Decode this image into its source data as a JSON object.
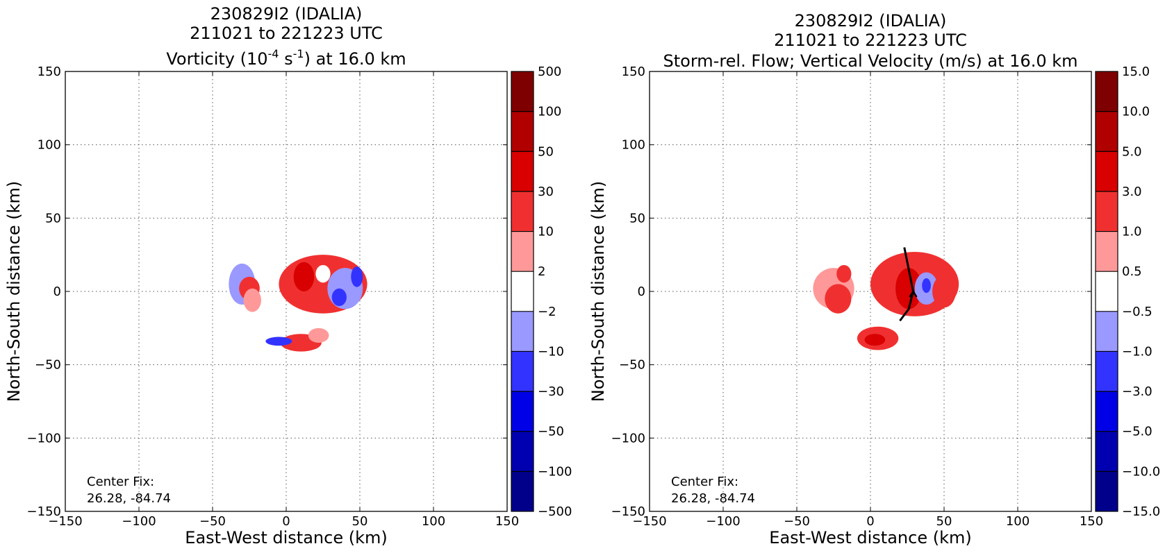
{
  "chart_data": [
    {
      "type": "heatmap",
      "panel": "left",
      "title_lines": [
        "230829I2 (IDALIA)",
        "211021 to 221223 UTC"
      ],
      "title_var_pre": "Vorticity (10",
      "title_var_exp1": "-4",
      "title_var_mid": " s",
      "title_var_exp2": "-1",
      "title_var_post": ") at 16.0 km",
      "xlabel": "East-West distance (km)",
      "ylabel": "North-South distance (km)",
      "xlim": [
        -150,
        150
      ],
      "ylim": [
        -150,
        150
      ],
      "xticks": [
        -150,
        -100,
        -50,
        0,
        50,
        100,
        150
      ],
      "yticks": [
        -150,
        -100,
        -50,
        0,
        50,
        100,
        150
      ],
      "xtick_labels": [
        "−150",
        "−100",
        "−50",
        "0",
        "50",
        "100",
        "150"
      ],
      "ytick_labels": [
        "−150",
        "−100",
        "−50",
        "0",
        "50",
        "100",
        "150"
      ],
      "grid": true,
      "colorbar_labels": [
        "500",
        "100",
        "50",
        "30",
        "10",
        "2",
        "−2",
        "−10",
        "−30",
        "−50",
        "−100",
        "−500"
      ],
      "colorbar_colors": [
        "#7f0000",
        "#b00000",
        "#d80000",
        "#f03030",
        "#ff9999",
        "#ffffff",
        "#9999ff",
        "#3333ff",
        "#0000e6",
        "#0000b0",
        "#00008b"
      ],
      "annotation_lines": [
        "Center Fix:",
        "26.28, -84.74"
      ],
      "blobs": [
        {
          "x": -30,
          "y": 5,
          "rx": 9,
          "ry": 14,
          "color": "#9999ff"
        },
        {
          "x": -25,
          "y": 2,
          "rx": 7,
          "ry": 8,
          "color": "#f03030"
        },
        {
          "x": -23,
          "y": -6,
          "rx": 6,
          "ry": 8,
          "color": "#ff9999"
        },
        {
          "x": 25,
          "y": 5,
          "rx": 30,
          "ry": 20,
          "color": "#f03030"
        },
        {
          "x": 40,
          "y": 2,
          "rx": 12,
          "ry": 14,
          "color": "#9999ff"
        },
        {
          "x": 36,
          "y": -4,
          "rx": 5,
          "ry": 6,
          "color": "#3333ff"
        },
        {
          "x": 48,
          "y": 10,
          "rx": 4,
          "ry": 7,
          "color": "#3333ff"
        },
        {
          "x": 25,
          "y": 12,
          "rx": 5,
          "ry": 6,
          "color": "#ffffff"
        },
        {
          "x": 12,
          "y": 10,
          "rx": 7,
          "ry": 10,
          "color": "#d80000"
        },
        {
          "x": 10,
          "y": -35,
          "rx": 14,
          "ry": 6,
          "color": "#f03030"
        },
        {
          "x": -5,
          "y": -34,
          "rx": 9,
          "ry": 3,
          "color": "#3333ff"
        },
        {
          "x": 22,
          "y": -30,
          "rx": 7,
          "ry": 5,
          "color": "#ff9999"
        }
      ]
    },
    {
      "type": "heatmap",
      "panel": "right",
      "title_lines": [
        "230829I2 (IDALIA)",
        "211021 to 221223 UTC",
        "Storm-rel. Flow; Vertical Velocity (m/s) at 16.0 km"
      ],
      "xlabel": "East-West distance (km)",
      "ylabel": "North-South distance (km)",
      "xlim": [
        -150,
        150
      ],
      "ylim": [
        -150,
        150
      ],
      "xticks": [
        -150,
        -100,
        -50,
        0,
        50,
        100,
        150
      ],
      "yticks": [
        -150,
        -100,
        -50,
        0,
        50,
        100,
        150
      ],
      "xtick_labels": [
        "−150",
        "−100",
        "−50",
        "0",
        "50",
        "100",
        "150"
      ],
      "ytick_labels": [
        "−150",
        "−100",
        "−50",
        "0",
        "50",
        "100",
        "150"
      ],
      "grid": true,
      "colorbar_labels": [
        "15.0",
        "10.0",
        "5.0",
        "3.0",
        "1.0",
        "0.5",
        "−0.5",
        "−1.0",
        "−3.0",
        "−5.0",
        "−10.0",
        "−15.0"
      ],
      "colorbar_colors": [
        "#7f0000",
        "#b00000",
        "#d80000",
        "#f03030",
        "#ff9999",
        "#ffffff",
        "#9999ff",
        "#3333ff",
        "#0000e6",
        "#0000b0",
        "#00008b"
      ],
      "annotation_lines": [
        "Center Fix:",
        "26.28, -84.74"
      ],
      "blobs": [
        {
          "x": -25,
          "y": 2,
          "rx": 14,
          "ry": 14,
          "color": "#ff9999"
        },
        {
          "x": -22,
          "y": -5,
          "rx": 9,
          "ry": 10,
          "color": "#f03030"
        },
        {
          "x": -18,
          "y": 12,
          "rx": 5,
          "ry": 6,
          "color": "#f03030"
        },
        {
          "x": 30,
          "y": 5,
          "rx": 30,
          "ry": 22,
          "color": "#f03030"
        },
        {
          "x": 26,
          "y": 2,
          "rx": 9,
          "ry": 14,
          "color": "#d80000"
        },
        {
          "x": 38,
          "y": 2,
          "rx": 8,
          "ry": 11,
          "color": "#9999ff"
        },
        {
          "x": 38,
          "y": 4,
          "rx": 3,
          "ry": 5,
          "color": "#3333ff"
        },
        {
          "x": 50,
          "y": 0,
          "rx": 8,
          "ry": 11,
          "color": "#f03030"
        },
        {
          "x": 5,
          "y": -32,
          "rx": 14,
          "ry": 8,
          "color": "#f03030"
        },
        {
          "x": 3,
          "y": -33,
          "rx": 7,
          "ry": 4,
          "color": "#d80000"
        }
      ],
      "streamline": [
        [
          23,
          30
        ],
        [
          26,
          15
        ],
        [
          29,
          0
        ],
        [
          26,
          -12
        ],
        [
          20,
          -20
        ]
      ]
    }
  ]
}
